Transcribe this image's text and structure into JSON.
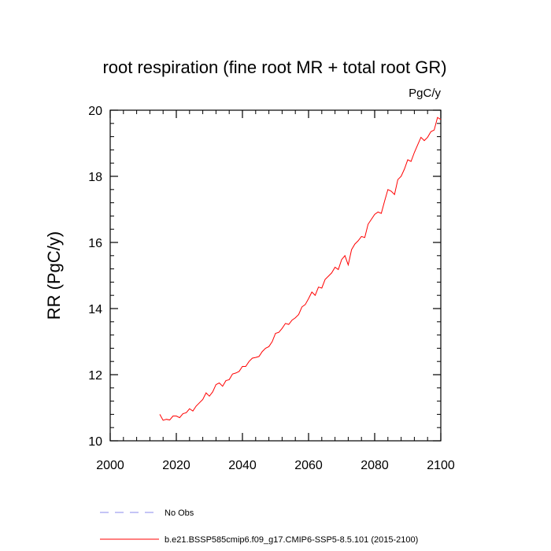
{
  "chart_data": {
    "type": "line",
    "title": "root respiration (fine root MR + total root GR)",
    "units_label": "PgC/y",
    "xlabel": "",
    "ylabel": "RR  (PgC/y)",
    "xlim": [
      2000,
      2100
    ],
    "ylim": [
      10,
      20
    ],
    "x_ticks": [
      2000,
      2020,
      2040,
      2060,
      2080,
      2100
    ],
    "y_ticks": [
      10,
      12,
      14,
      16,
      18,
      20
    ],
    "grid": false,
    "legend_placement": "bottom",
    "legend": [
      {
        "label": "No Obs",
        "color": "#8888ee",
        "style": "dashed"
      },
      {
        "label": "b.e21.BSSP585cmip6.f09_g17.CMIP6-SSP5-8.5.101 (2015-2100)",
        "color": "#ff0000",
        "style": "solid"
      }
    ],
    "series": [
      {
        "name": "b.e21.BSSP585cmip6.f09_g17.CMIP6-SSP5-8.5.101 (2015-2100)",
        "color": "#ff0000",
        "x": [
          2015,
          2016,
          2017,
          2018,
          2019,
          2020,
          2021,
          2022,
          2023,
          2024,
          2025,
          2026,
          2027,
          2028,
          2029,
          2030,
          2031,
          2032,
          2033,
          2034,
          2035,
          2036,
          2037,
          2038,
          2039,
          2040,
          2041,
          2042,
          2043,
          2044,
          2045,
          2046,
          2047,
          2048,
          2049,
          2050,
          2051,
          2052,
          2053,
          2054,
          2055,
          2056,
          2057,
          2058,
          2059,
          2060,
          2061,
          2062,
          2063,
          2064,
          2065,
          2066,
          2067,
          2068,
          2069,
          2070,
          2071,
          2072,
          2073,
          2074,
          2075,
          2076,
          2077,
          2078,
          2079,
          2080,
          2081,
          2082,
          2083,
          2084,
          2085,
          2086,
          2087,
          2088,
          2089,
          2090,
          2091,
          2092,
          2093,
          2094,
          2095,
          2096,
          2097,
          2098,
          2099,
          2100
        ],
        "values": [
          10.8,
          10.62,
          10.65,
          10.63,
          10.75,
          10.75,
          10.7,
          10.82,
          10.85,
          10.97,
          10.9,
          11.05,
          11.15,
          11.25,
          11.45,
          11.35,
          11.48,
          11.7,
          11.75,
          11.65,
          11.82,
          11.85,
          12.02,
          12.05,
          12.1,
          12.25,
          12.25,
          12.4,
          12.5,
          12.52,
          12.55,
          12.7,
          12.8,
          12.85,
          13.0,
          13.25,
          13.28,
          13.4,
          13.55,
          13.52,
          13.65,
          13.72,
          13.82,
          14.05,
          14.12,
          14.3,
          14.5,
          14.4,
          14.65,
          14.62,
          14.88,
          14.98,
          15.08,
          15.25,
          15.18,
          15.48,
          15.6,
          15.32,
          15.78,
          15.95,
          16.05,
          16.18,
          16.15,
          16.55,
          16.7,
          16.85,
          16.92,
          16.88,
          17.25,
          17.6,
          17.55,
          17.45,
          17.9,
          18.0,
          18.22,
          18.5,
          18.45,
          18.72,
          18.95,
          19.18,
          19.08,
          19.18,
          19.35,
          19.4,
          19.78,
          19.72
        ]
      }
    ]
  }
}
